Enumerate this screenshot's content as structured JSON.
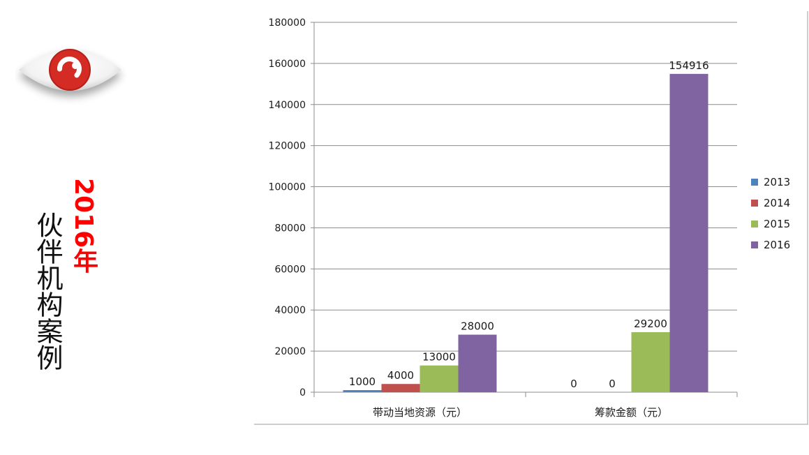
{
  "side_title": {
    "year_label": "2016年",
    "main_label": "伙伴机构案例"
  },
  "logo": {
    "icon": "eye-icon",
    "iris_color": "#d42b24"
  },
  "chart_data": {
    "type": "bar",
    "categories": [
      "带动当地资源（元）",
      "筹款金额（元）"
    ],
    "series": [
      {
        "name": "2013",
        "color": "#4f81bd",
        "values": [
          1000,
          0
        ]
      },
      {
        "name": "2014",
        "color": "#c0504d",
        "values": [
          4000,
          0
        ]
      },
      {
        "name": "2015",
        "color": "#9bbb59",
        "values": [
          13000,
          29200
        ]
      },
      {
        "name": "2016",
        "color": "#8064a2",
        "values": [
          28000,
          154916
        ]
      }
    ],
    "y_ticks": [
      "0",
      "20000",
      "40000",
      "60000",
      "80000",
      "100000",
      "120000",
      "140000",
      "160000",
      "180000"
    ],
    "ylim": [
      0,
      180000
    ],
    "grid": true,
    "legend_position": "right"
  }
}
